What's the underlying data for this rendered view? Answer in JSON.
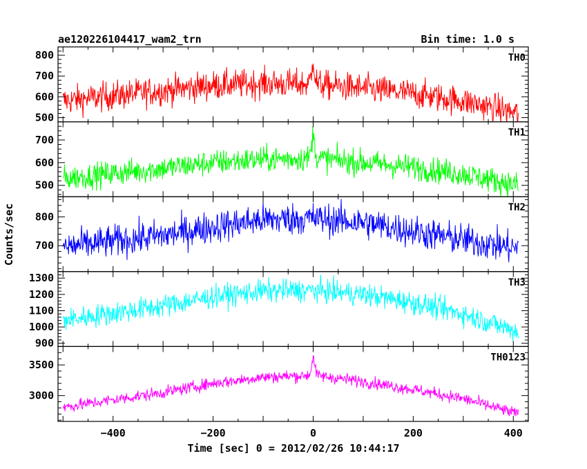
{
  "chart_data": {
    "type": "line",
    "title": "ae120226104417_wam2_trn",
    "subtitle": "Bin time: 1.0 s",
    "xlabel": "Time [sec] 0 = 2012/02/26 10:44:17",
    "ylabel": "Counts/sec",
    "xlim": [
      -510,
      430
    ],
    "x_ticks": [
      -400,
      -200,
      0,
      200,
      400
    ],
    "x_tick_labels": [
      "−400",
      "−200",
      "0",
      "200",
      "400"
    ],
    "x_range": [
      -500,
      410
    ],
    "bin_time": 1.0,
    "grid": false,
    "panels": [
      {
        "name": "TH0",
        "color": "#ff0000",
        "ylim": [
          480,
          840
        ],
        "y_ticks": [
          500,
          600,
          700,
          800
        ],
        "y_tick_labels": [
          "500",
          "600",
          "700",
          "800"
        ],
        "profile": [
          [
            -500,
            580
          ],
          [
            -300,
            630
          ],
          [
            -200,
            655
          ],
          [
            -100,
            665
          ],
          [
            -5,
            660
          ],
          [
            5,
            660
          ],
          [
            100,
            640
          ],
          [
            200,
            615
          ],
          [
            300,
            580
          ],
          [
            410,
            520
          ]
        ],
        "noise": 50,
        "spike": {
          "x": 0,
          "peak": 830,
          "width": 3
        }
      },
      {
        "name": "TH1",
        "color": "#00ff00",
        "ylim": [
          450,
          780
        ],
        "y_ticks": [
          500,
          600,
          700
        ],
        "y_tick_labels": [
          "500",
          "600",
          "700"
        ],
        "profile": [
          [
            -500,
            530
          ],
          [
            -300,
            575
          ],
          [
            -200,
            600
          ],
          [
            -100,
            615
          ],
          [
            -5,
            620
          ],
          [
            5,
            620
          ],
          [
            100,
            600
          ],
          [
            200,
            580
          ],
          [
            300,
            550
          ],
          [
            410,
            500
          ]
        ],
        "noise": 40,
        "spike": {
          "x": 0,
          "peak": 770,
          "width": 3
        }
      },
      {
        "name": "TH2",
        "color": "#0000ff",
        "ylim": [
          610,
          870
        ],
        "y_ticks": [
          700,
          800
        ],
        "y_tick_labels": [
          "700",
          "800"
        ],
        "profile": [
          [
            -500,
            695
          ],
          [
            -300,
            735
          ],
          [
            -200,
            765
          ],
          [
            -100,
            790
          ],
          [
            0,
            795
          ],
          [
            100,
            780
          ],
          [
            200,
            750
          ],
          [
            300,
            720
          ],
          [
            410,
            690
          ]
        ],
        "noise": 40,
        "spike": null
      },
      {
        "name": "TH3",
        "color": "#00ffff",
        "ylim": [
          880,
          1340
        ],
        "y_ticks": [
          900,
          1000,
          1100,
          1200,
          1300
        ],
        "y_tick_labels": [
          "900",
          "1000",
          "1100",
          "1200",
          "1300"
        ],
        "profile": [
          [
            -500,
            1040
          ],
          [
            -300,
            1130
          ],
          [
            -200,
            1185
          ],
          [
            -100,
            1220
          ],
          [
            0,
            1225
          ],
          [
            100,
            1200
          ],
          [
            200,
            1150
          ],
          [
            300,
            1080
          ],
          [
            410,
            970
          ]
        ],
        "noise": 50,
        "spike": null
      },
      {
        "name": "TH0123",
        "color": "#ff00ff",
        "ylim": [
          2580,
          3800
        ],
        "y_ticks": [
          3000,
          3500
        ],
        "y_tick_labels": [
          "3000",
          "3500"
        ],
        "profile": [
          [
            -500,
            2810
          ],
          [
            -300,
            3050
          ],
          [
            -200,
            3200
          ],
          [
            -100,
            3300
          ],
          [
            -5,
            3330
          ],
          [
            5,
            3330
          ],
          [
            100,
            3230
          ],
          [
            200,
            3100
          ],
          [
            300,
            2950
          ],
          [
            410,
            2700
          ]
        ],
        "noise": 70,
        "spike": {
          "x": 0,
          "peak": 3760,
          "width": 3
        }
      }
    ]
  }
}
